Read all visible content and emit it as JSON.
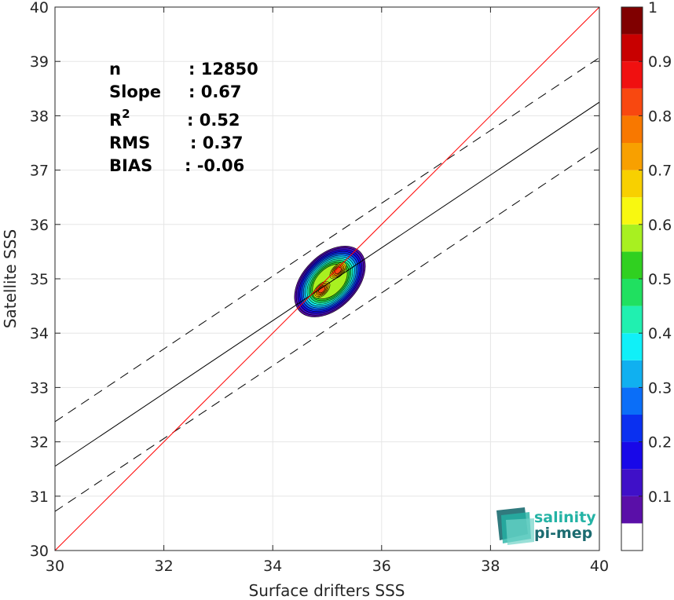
{
  "chart_data": {
    "type": "scatter",
    "subtype": "density-contour",
    "xlabel": "Surface drifters SSS",
    "ylabel": "Satellite SSS",
    "xlim": [
      30,
      40
    ],
    "ylim": [
      30,
      40
    ],
    "xticks": [
      "30",
      "32",
      "34",
      "36",
      "38",
      "40"
    ],
    "yticks": [
      "30",
      "31",
      "32",
      "33",
      "34",
      "35",
      "36",
      "37",
      "38",
      "39",
      "40"
    ],
    "grid": true,
    "stats": [
      {
        "label": "n",
        "sep": ": 12850"
      },
      {
        "label": "Slope",
        "sep": ": 0.67"
      },
      {
        "label": "R",
        "sup": "2",
        "sep": ": 0.52"
      },
      {
        "label": "RMS",
        "sep": ": 0.37"
      },
      {
        "label": "BIAS",
        "sep": ": -0.06"
      }
    ],
    "lines": {
      "identity": {
        "slope": 1,
        "intercept": 0,
        "color": "#ff0000"
      },
      "regression": {
        "slope": 0.67,
        "intercept": 11.45,
        "color": "#000000"
      },
      "regression_upper": {
        "slope": 0.67,
        "intercept": 12.27,
        "style": "dashed"
      },
      "regression_lower": {
        "slope": 0.67,
        "intercept": 10.62,
        "style": "dashed"
      }
    },
    "density_center": {
      "x": 35.05,
      "y": 34.95
    },
    "density_peaks": [
      {
        "x": 34.9,
        "y": 34.8
      },
      {
        "x": 35.2,
        "y": 35.15
      }
    ],
    "colorbar": {
      "range": [
        0,
        1
      ],
      "ticks": [
        "0.1",
        "0.2",
        "0.3",
        "0.4",
        "0.5",
        "0.6",
        "0.7",
        "0.8",
        "0.9",
        "1"
      ],
      "levels": [
        {
          "from": 0.0,
          "to": 0.05,
          "color": "#ffffff"
        },
        {
          "from": 0.05,
          "to": 0.1,
          "color": "#5a0fa8"
        },
        {
          "from": 0.1,
          "to": 0.15,
          "color": "#3f10c8"
        },
        {
          "from": 0.15,
          "to": 0.2,
          "color": "#1808e8"
        },
        {
          "from": 0.2,
          "to": 0.25,
          "color": "#0a30f0"
        },
        {
          "from": 0.25,
          "to": 0.3,
          "color": "#0a6ef8"
        },
        {
          "from": 0.3,
          "to": 0.35,
          "color": "#10b0f0"
        },
        {
          "from": 0.35,
          "to": 0.4,
          "color": "#10f0f8"
        },
        {
          "from": 0.4,
          "to": 0.45,
          "color": "#20f0b0"
        },
        {
          "from": 0.45,
          "to": 0.5,
          "color": "#20e060"
        },
        {
          "from": 0.5,
          "to": 0.55,
          "color": "#30d020"
        },
        {
          "from": 0.55,
          "to": 0.6,
          "color": "#a8f020"
        },
        {
          "from": 0.6,
          "to": 0.65,
          "color": "#f8f810"
        },
        {
          "from": 0.65,
          "to": 0.7,
          "color": "#f8d000"
        },
        {
          "from": 0.7,
          "to": 0.75,
          "color": "#f8a000"
        },
        {
          "from": 0.75,
          "to": 0.8,
          "color": "#f87800"
        },
        {
          "from": 0.8,
          "to": 0.85,
          "color": "#f84810"
        },
        {
          "from": 0.85,
          "to": 0.9,
          "color": "#f01010"
        },
        {
          "from": 0.9,
          "to": 0.95,
          "color": "#c80000"
        },
        {
          "from": 0.95,
          "to": 1.0,
          "color": "#800000"
        }
      ]
    }
  },
  "logo": {
    "line1": "salinity",
    "line2": "pi-mep",
    "color1": "#24b3a5",
    "color2": "#1b6b70"
  }
}
